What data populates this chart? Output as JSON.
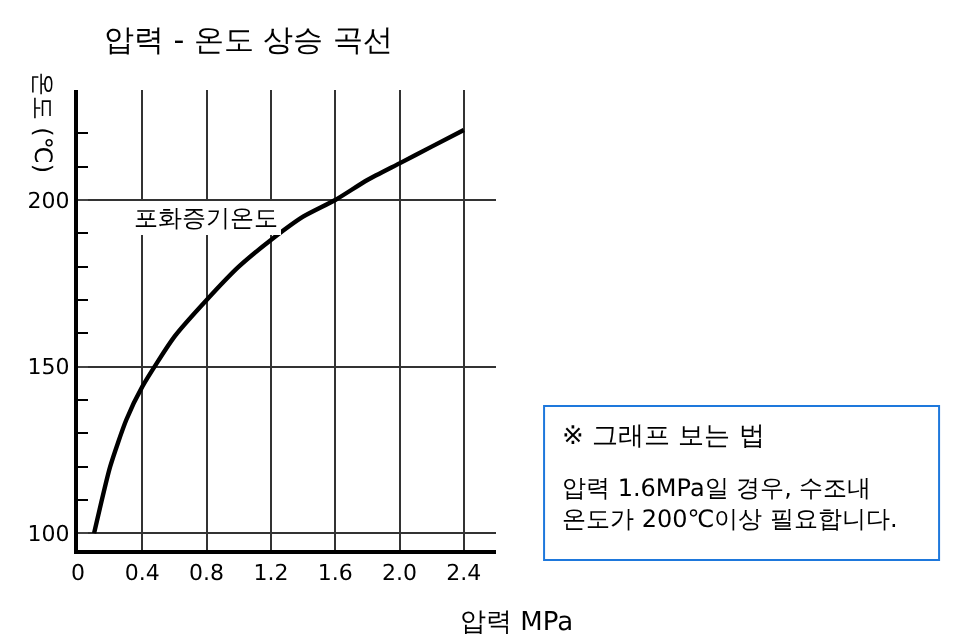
{
  "chart_data": {
    "type": "line",
    "title": "압력 - 온도 상승 곡선",
    "xlabel": "압력 MPa",
    "ylabel": "온도 (℃)",
    "x": [
      0.1,
      0.2,
      0.3,
      0.4,
      0.6,
      0.8,
      1.0,
      1.2,
      1.4,
      1.6,
      1.8,
      2.0,
      2.2,
      2.4
    ],
    "series": [
      {
        "color": "#000000",
        "values": [
          100,
          120,
          134,
          144,
          159,
          170,
          180,
          188,
          195,
          200,
          206,
          211,
          216,
          221
        ]
      }
    ],
    "xlim": [
      0,
      2.6
    ],
    "ylim": [
      95,
      233
    ],
    "xticks": [
      0,
      0.4,
      0.8,
      1.2,
      1.6,
      {
        "value": 2.0,
        "label": "2.0"
      },
      2.4
    ],
    "yticks": [
      100,
      {
        "value": 110,
        "label": null
      },
      {
        "value": 120,
        "label": null
      },
      {
        "value": 130,
        "label": null
      },
      {
        "value": 140,
        "label": null
      },
      150,
      {
        "value": 160,
        "label": null
      },
      {
        "value": 170,
        "label": null
      },
      {
        "value": 180,
        "label": null
      },
      {
        "value": 190,
        "label": null
      },
      200,
      {
        "value": 210,
        "label": null
      },
      {
        "value": 220,
        "label": null
      }
    ],
    "grid": true,
    "marker": "none",
    "line_style": "solid",
    "annotations": [
      "포화증기온도",
      "※ 그래프 보는 법",
      "압력 1.6MPa일 경우, 수조내\n온도가 200℃이상 필요합니다."
    ]
  }
}
